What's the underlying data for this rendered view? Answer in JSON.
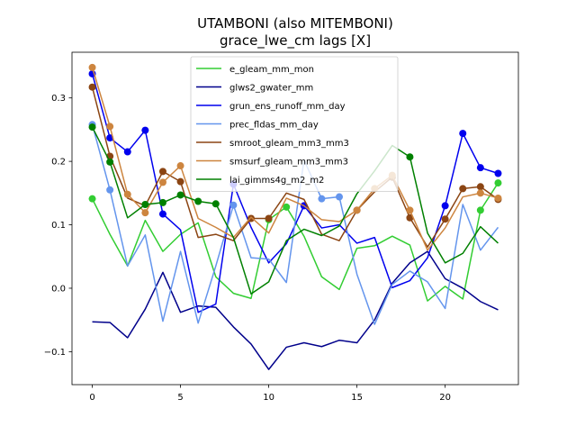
{
  "chart_data": {
    "type": "line",
    "title": "UTAMBONI (also MITEMBONI)",
    "subtitle": "grace_lwe_cm lags [X]",
    "xlabel": "",
    "ylabel": "",
    "xlim": [
      -1.15,
      24.15
    ],
    "ylim": [
      -0.152,
      0.372
    ],
    "xticks": [
      0,
      5,
      10,
      15,
      20
    ],
    "yticks": [
      -0.1,
      0.0,
      0.1,
      0.2,
      0.3
    ],
    "ytick_labels": [
      "−0.1",
      "0.0",
      "0.1",
      "0.2",
      "0.3"
    ],
    "grid": false,
    "legend_position": "upper center",
    "x": [
      0,
      1,
      2,
      3,
      4,
      5,
      6,
      7,
      8,
      9,
      10,
      11,
      12,
      13,
      14,
      15,
      16,
      17,
      18,
      19,
      20,
      21,
      22,
      23
    ],
    "series": [
      {
        "name": "e_gleam_mm_mon",
        "color": "#32cd32",
        "values": [
          0.141,
          0.085,
          0.035,
          0.107,
          0.058,
          0.085,
          0.103,
          0.018,
          -0.008,
          -0.016,
          0.108,
          0.128,
          0.082,
          0.018,
          -0.002,
          0.063,
          0.067,
          0.082,
          0.068,
          -0.02,
          0.003,
          -0.017,
          0.123,
          0.166
        ],
        "markers": [
          0,
          10,
          11,
          22,
          23
        ]
      },
      {
        "name": "glws2_gwater_mm",
        "color": "#00008b",
        "values": [
          -0.053,
          -0.054,
          -0.078,
          -0.033,
          0.025,
          -0.038,
          -0.028,
          -0.03,
          -0.061,
          -0.088,
          -0.128,
          -0.093,
          -0.086,
          -0.092,
          -0.082,
          -0.086,
          -0.05,
          0.008,
          0.04,
          0.058,
          0.015,
          0.0,
          -0.021,
          -0.034
        ],
        "markers": []
      },
      {
        "name": "grun_ens_runoff_mm_day",
        "color": "#0000ee",
        "values": [
          0.338,
          0.237,
          0.215,
          0.249,
          0.117,
          0.092,
          -0.038,
          -0.025,
          0.164,
          0.096,
          0.04,
          0.07,
          0.13,
          0.095,
          0.1,
          0.071,
          0.08,
          0.001,
          0.012,
          0.048,
          0.13,
          0.244,
          0.19,
          0.181
        ],
        "markers": [
          0,
          1,
          2,
          3,
          4,
          8,
          12,
          20,
          21,
          22,
          23
        ]
      },
      {
        "name": "prec_fldas_mm_day",
        "color": "#6495ed",
        "values": [
          0.258,
          0.155,
          0.035,
          0.084,
          -0.052,
          0.058,
          -0.055,
          0.035,
          0.131,
          0.048,
          0.046,
          0.009,
          0.202,
          0.141,
          0.144,
          0.022,
          -0.057,
          0.006,
          0.027,
          0.01,
          -0.032,
          0.132,
          0.06,
          0.096
        ],
        "markers": [
          0,
          1,
          8,
          13,
          14
        ]
      },
      {
        "name": "smroot_gleam_mm3_mm3",
        "color": "#8b4513",
        "values": [
          0.317,
          0.208,
          0.142,
          0.13,
          0.184,
          0.168,
          0.08,
          0.085,
          0.075,
          0.11,
          0.11,
          0.15,
          0.14,
          0.085,
          0.075,
          0.123,
          0.152,
          0.175,
          0.111,
          0.065,
          0.109,
          0.157,
          0.16,
          0.14
        ],
        "markers": [
          0,
          1,
          4,
          5,
          9,
          10,
          15,
          17,
          18,
          20,
          21,
          22,
          23
        ]
      },
      {
        "name": "smsurf_gleam_mm3_mm3",
        "color": "#cd853f",
        "values": [
          0.348,
          0.255,
          0.148,
          0.119,
          0.167,
          0.193,
          0.11,
          0.096,
          0.08,
          0.112,
          0.087,
          0.142,
          0.13,
          0.108,
          0.105,
          0.123,
          0.157,
          0.178,
          0.123,
          0.06,
          0.095,
          0.144,
          0.15,
          0.142
        ],
        "markers": [
          0,
          1,
          2,
          3,
          4,
          5,
          15,
          16,
          17,
          18,
          22,
          23
        ]
      },
      {
        "name": "lai_gimms4g_m2_m2",
        "color": "#008000",
        "values": [
          0.254,
          0.199,
          0.111,
          0.132,
          0.135,
          0.147,
          0.137,
          0.133,
          0.08,
          -0.009,
          0.01,
          0.075,
          0.093,
          0.083,
          0.098,
          0.149,
          0.185,
          0.225,
          0.207,
          0.087,
          0.04,
          0.055,
          0.097,
          0.071
        ],
        "markers": [
          0,
          1,
          3,
          4,
          5,
          6,
          7,
          18
        ]
      }
    ]
  }
}
